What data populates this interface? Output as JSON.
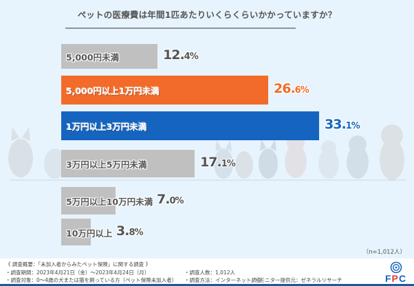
{
  "chart_data": {
    "type": "bar",
    "orientation": "horizontal",
    "title": "ペットの医療費は年間1匹あたりいくらくらいかかっていますか？",
    "categories": [
      "5,000円未満",
      "5,000円以上1万円未満",
      "1万円以上3万円未満",
      "3万円以上5万円未満",
      "5万円以上10万円未満",
      "10万円以上"
    ],
    "values": [
      12.4,
      26.6,
      33.1,
      17.1,
      7.0,
      3.8
    ],
    "value_labels": [
      {
        "int": "12.",
        "dec": "4%"
      },
      {
        "int": "26.",
        "dec": "6%"
      },
      {
        "int": "33.",
        "dec": "1%"
      },
      {
        "int": "17.",
        "dec": "1%"
      },
      {
        "int": "7.",
        "dec": "0%"
      },
      {
        "int": "3.",
        "dec": "8%"
      }
    ],
    "unit": "%",
    "xlim": [
      0,
      35
    ],
    "grid": false,
    "legend": "none",
    "colors": [
      "#c0c0c0",
      "#f26b2a",
      "#1565c0",
      "#c0c0c0",
      "#c0c0c0",
      "#c0c0c0"
    ],
    "value_colors": [
      "#555555",
      "#f26b2a",
      "#1565c0",
      "#555555",
      "#555555",
      "#555555"
    ],
    "label_styles": [
      "gray",
      "colored",
      "colored",
      "gray",
      "gray",
      "gray"
    ]
  },
  "sample_note": "（n=1,012人）",
  "footer": {
    "summary": "《 調査概要：「未加入者からみたペット保険」に関する調査 》",
    "period": "・調査期間：2023年4月21日（金）～2023年4月24日（月）",
    "respondents": "・調査人数：1,012人",
    "target": "・調査対象：0～4歳の犬または猫を飼っている方（ペット保険未加入者）",
    "method": "・調査方法：インターネット調査",
    "provider": "・モニター提供元：ゼネラルリサーチ"
  },
  "logo": {
    "text": "FPC",
    "brand_color": "#1565c0",
    "accent_color": "#e63b2e"
  }
}
